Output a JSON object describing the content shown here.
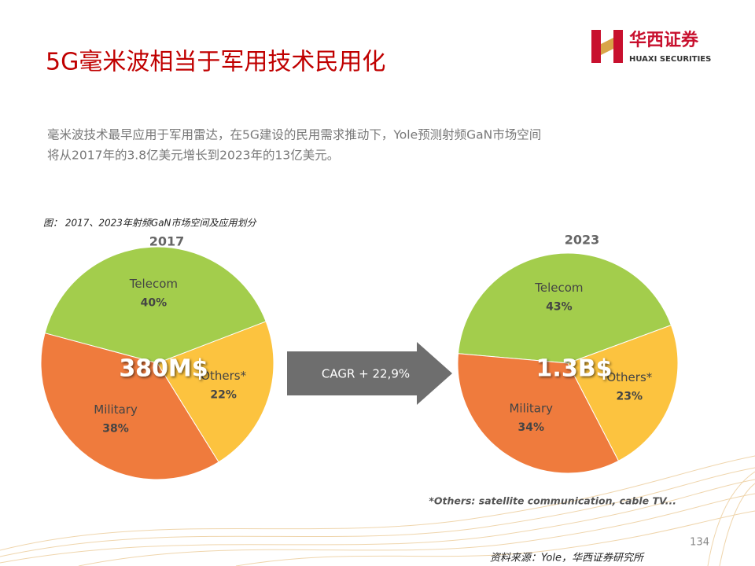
{
  "title": "5G毫米波相当于军用技术民用化",
  "logo": {
    "name": "华西证券",
    "subtitle": "HUAXI SECURITIES"
  },
  "body": [
    "毫米波技术最早应用于军用雷达，在5G建设的民用需求推动下，Yole预测射频GaN市场空间",
    "将从2017年的3.8亿美元增长到2023年的13亿美元。"
  ],
  "figure_caption": "图：  2017、2023年射频GaN市场空间及应用划分",
  "chart_data": [
    {
      "type": "pie",
      "title": "2017",
      "center_label": "380M$",
      "categories": [
        "Telecom",
        "Others*",
        "Military"
      ],
      "values": [
        40,
        22,
        38
      ],
      "value_labels": [
        "40%",
        "22%",
        "38%"
      ],
      "colors": [
        "#a3cd4c",
        "#fcc33f",
        "#ef7b3d"
      ]
    },
    {
      "type": "pie",
      "title": "2023",
      "center_label": "1.3B$",
      "categories": [
        "Telecom",
        "Others*",
        "Military"
      ],
      "values": [
        43,
        23,
        34
      ],
      "value_labels": [
        "43%",
        "23%",
        "34%"
      ],
      "colors": [
        "#a3cd4c",
        "#fcc33f",
        "#ef7b3d"
      ]
    }
  ],
  "arrow_label": "CAGR + 22,9%",
  "footnote": "*Others: satellite communication, cable TV...",
  "page_number": "134",
  "source": "资料来源：Yole，华西证券研究所"
}
